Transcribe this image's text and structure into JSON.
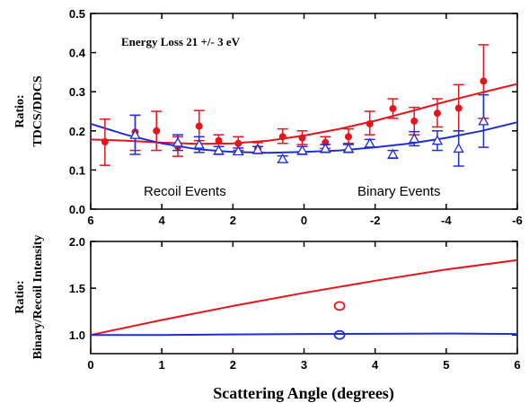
{
  "colors": {
    "red": "#e8141c",
    "blue": "#1f2ed8",
    "axis": "#000000"
  },
  "chart_data": [
    {
      "type": "scatter",
      "ylabel_lines": [
        "Ratio:",
        "TDCS/DDCS"
      ],
      "annotation": "Energy Loss 21 +/- 3 eV",
      "region_labels": {
        "left": "Recoil Events",
        "right": "Binary Events"
      },
      "xlim": [
        6,
        -6
      ],
      "ylim": [
        0,
        0.5
      ],
      "x_ticks": [
        6,
        4,
        2,
        0,
        -2,
        -4,
        -6
      ],
      "y_ticks": [
        "0.0",
        "0.1",
        "0.2",
        "0.3",
        "0.4",
        "0.5"
      ],
      "series": [
        {
          "marker": "filled-circle",
          "color": "red",
          "points": [
            {
              "x": 5.6,
              "y": 0.172,
              "lo": 0.112,
              "hi": 0.23
            },
            {
              "x": 4.75,
              "y": 0.197,
              "lo": 0.15,
              "hi": 0.24
            },
            {
              "x": 4.15,
              "y": 0.2,
              "lo": 0.15,
              "hi": 0.25
            },
            {
              "x": 3.55,
              "y": 0.16,
              "lo": 0.135,
              "hi": 0.185
            },
            {
              "x": 2.95,
              "y": 0.212,
              "lo": 0.175,
              "hi": 0.252
            },
            {
              "x": 2.4,
              "y": 0.175,
              "lo": 0.16,
              "hi": 0.19
            },
            {
              "x": 1.85,
              "y": 0.168,
              "lo": 0.15,
              "hi": 0.185
            },
            {
              "x": 1.3,
              "y": 0.155,
              "lo": 0.142,
              "hi": 0.17
            },
            {
              "x": 0.6,
              "y": 0.185,
              "lo": 0.168,
              "hi": 0.205
            },
            {
              "x": 0.05,
              "y": 0.182,
              "lo": 0.165,
              "hi": 0.2
            },
            {
              "x": -0.6,
              "y": 0.17,
              "lo": 0.155,
              "hi": 0.185
            },
            {
              "x": -1.25,
              "y": 0.185,
              "lo": 0.168,
              "hi": 0.205
            },
            {
              "x": -1.85,
              "y": 0.218,
              "lo": 0.19,
              "hi": 0.25
            },
            {
              "x": -2.5,
              "y": 0.257,
              "lo": 0.232,
              "hi": 0.282
            },
            {
              "x": -3.1,
              "y": 0.225,
              "lo": 0.19,
              "hi": 0.26
            },
            {
              "x": -3.75,
              "y": 0.245,
              "lo": 0.21,
              "hi": 0.282
            },
            {
              "x": -4.35,
              "y": 0.258,
              "lo": 0.2,
              "hi": 0.318
            },
            {
              "x": -5.05,
              "y": 0.327,
              "lo": 0.232,
              "hi": 0.42
            }
          ],
          "fit_curve": [
            {
              "x": 6,
              "y": 0.178
            },
            {
              "x": 5,
              "y": 0.175
            },
            {
              "x": 4,
              "y": 0.17
            },
            {
              "x": 3,
              "y": 0.167
            },
            {
              "x": 2,
              "y": 0.168
            },
            {
              "x": 1,
              "y": 0.175
            },
            {
              "x": 0,
              "y": 0.188
            },
            {
              "x": -1,
              "y": 0.205
            },
            {
              "x": -2,
              "y": 0.226
            },
            {
              "x": -3,
              "y": 0.25
            },
            {
              "x": -4,
              "y": 0.275
            },
            {
              "x": -5,
              "y": 0.298
            },
            {
              "x": -6,
              "y": 0.32
            }
          ]
        },
        {
          "marker": "open-triangle",
          "color": "blue",
          "points": [
            {
              "x": 4.75,
              "y": 0.19,
              "lo": 0.14,
              "hi": 0.24
            },
            {
              "x": 3.55,
              "y": 0.17,
              "lo": 0.15,
              "hi": 0.19
            },
            {
              "x": 2.95,
              "y": 0.165,
              "lo": 0.145,
              "hi": 0.185
            },
            {
              "x": 2.4,
              "y": 0.15,
              "lo": 0.14,
              "hi": 0.16
            },
            {
              "x": 1.85,
              "y": 0.148,
              "lo": 0.14,
              "hi": 0.156
            },
            {
              "x": 1.3,
              "y": 0.152,
              "lo": 0.144,
              "hi": 0.16
            },
            {
              "x": 0.6,
              "y": 0.128,
              "lo": 0.12,
              "hi": 0.136
            },
            {
              "x": 0.05,
              "y": 0.15,
              "lo": 0.14,
              "hi": 0.16
            },
            {
              "x": -0.6,
              "y": 0.155,
              "lo": 0.145,
              "hi": 0.165
            },
            {
              "x": -1.25,
              "y": 0.155,
              "lo": 0.145,
              "hi": 0.165
            },
            {
              "x": -1.85,
              "y": 0.168,
              "lo": 0.158,
              "hi": 0.178
            },
            {
              "x": -2.5,
              "y": 0.14,
              "lo": 0.13,
              "hi": 0.15
            },
            {
              "x": -3.1,
              "y": 0.18,
              "lo": 0.162,
              "hi": 0.198
            },
            {
              "x": -3.75,
              "y": 0.175,
              "lo": 0.15,
              "hi": 0.2
            },
            {
              "x": -4.35,
              "y": 0.155,
              "lo": 0.11,
              "hi": 0.2
            },
            {
              "x": -5.05,
              "y": 0.225,
              "lo": 0.158,
              "hi": 0.292
            }
          ],
          "fit_curve": [
            {
              "x": 6,
              "y": 0.218
            },
            {
              "x": 5,
              "y": 0.19
            },
            {
              "x": 4,
              "y": 0.168
            },
            {
              "x": 3,
              "y": 0.153
            },
            {
              "x": 2,
              "y": 0.146
            },
            {
              "x": 1,
              "y": 0.144
            },
            {
              "x": 0,
              "y": 0.146
            },
            {
              "x": -1,
              "y": 0.15
            },
            {
              "x": -2,
              "y": 0.158
            },
            {
              "x": -3,
              "y": 0.168
            },
            {
              "x": -4,
              "y": 0.182
            },
            {
              "x": -5,
              "y": 0.2
            },
            {
              "x": -6,
              "y": 0.222
            }
          ]
        }
      ]
    },
    {
      "type": "line",
      "ylabel_lines": [
        "Ratio:",
        "Binary/Recoil Intensity"
      ],
      "xlabel": "Scattering Angle (degrees)",
      "xlim": [
        0,
        6
      ],
      "ylim": [
        0.8,
        2.0
      ],
      "x_ticks": [
        0,
        1,
        2,
        3,
        4,
        5,
        6
      ],
      "y_ticks": [
        "1.0",
        "1.5",
        "2.0"
      ],
      "series": [
        {
          "color": "red",
          "line": [
            {
              "x": 0,
              "y": 1.0
            },
            {
              "x": 1,
              "y": 1.16
            },
            {
              "x": 2,
              "y": 1.31
            },
            {
              "x": 3,
              "y": 1.45
            },
            {
              "x": 4,
              "y": 1.58
            },
            {
              "x": 5,
              "y": 1.7
            },
            {
              "x": 6,
              "y": 1.8
            }
          ],
          "marker_point": {
            "x": 3.5,
            "y": 1.31
          }
        },
        {
          "color": "blue",
          "line": [
            {
              "x": 0,
              "y": 1.0
            },
            {
              "x": 1,
              "y": 1.0
            },
            {
              "x": 2,
              "y": 1.005
            },
            {
              "x": 3,
              "y": 1.01
            },
            {
              "x": 4,
              "y": 1.012
            },
            {
              "x": 5,
              "y": 1.015
            },
            {
              "x": 6,
              "y": 1.01
            }
          ],
          "marker_point": {
            "x": 3.5,
            "y": 1.0
          }
        }
      ]
    }
  ]
}
